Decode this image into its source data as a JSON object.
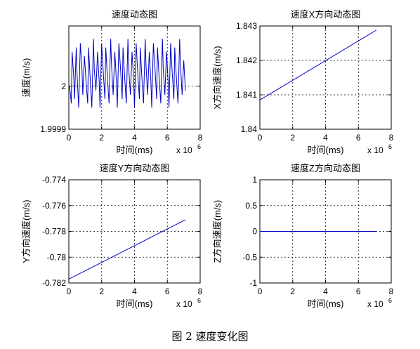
{
  "caption": "图 2 速度变化图",
  "chart_data": [
    {
      "id": "speed",
      "type": "line",
      "title": "速度动态图",
      "xlabel": "时间(ms)",
      "ylabel": "速度(m/s)",
      "x_exponent_label": "x 10",
      "x_exponent": "6",
      "xlim": [
        0,
        8
      ],
      "ylim": [
        1.9999,
        2.00014
      ],
      "xticks": [
        0,
        2,
        4,
        6,
        8
      ],
      "xtick_labels": [
        "0",
        "2",
        "4",
        "6",
        "8"
      ],
      "yticks": [
        1.9999,
        2
      ],
      "ytick_labels": [
        "1.9999",
        "2"
      ],
      "grid": true,
      "line_color": "#0000c8",
      "series": [
        {
          "x": [
            0.05,
            0.15,
            0.2,
            0.3,
            0.35,
            0.45,
            0.5,
            0.6,
            0.7,
            0.8,
            0.85,
            0.95,
            1.05,
            1.15,
            1.2,
            1.3,
            1.4,
            1.5,
            1.55,
            1.65,
            1.75,
            1.85,
            1.9,
            2.0,
            2.1,
            2.2,
            2.25,
            2.35,
            2.45,
            2.55,
            2.6,
            2.7,
            2.8,
            2.9,
            2.95,
            3.05,
            3.15,
            3.25,
            3.3,
            3.4,
            3.5,
            3.6,
            3.65,
            3.75,
            3.85,
            3.95,
            4.0,
            4.1,
            4.2,
            4.3,
            4.35,
            4.45,
            4.55,
            4.65,
            4.7,
            4.8,
            4.9,
            5.0,
            5.05,
            5.15,
            5.25,
            5.35,
            5.4,
            5.5,
            5.6,
            5.7,
            5.75,
            5.85,
            5.95,
            6.05,
            6.1,
            6.2,
            6.3,
            6.4,
            6.45,
            6.55,
            6.65,
            6.75,
            6.8,
            6.9,
            7.0,
            7.1
          ],
          "y": [
            2.0,
            1.99996,
            2.00008,
            2.00002,
            1.99997,
            2.00009,
            2.00003,
            1.99995,
            2.0001,
            2.00004,
            1.99998,
            2.00007,
            2.00001,
            1.99996,
            2.00009,
            2.00002,
            1.99995,
            2.00011,
            2.00004,
            1.99999,
            2.00008,
            2.00001,
            1.99995,
            2.0001,
            2.00003,
            1.99997,
            2.00009,
            2.00002,
            1.99996,
            2.00011,
            2.00005,
            1.99998,
            2.00008,
            2.00001,
            1.99995,
            2.0001,
            2.00004,
            1.99997,
            2.00009,
            2.00002,
            1.99996,
            2.00011,
            2.00004,
            1.99998,
            2.00008,
            2.00001,
            1.99995,
            2.0001,
            2.00003,
            1.99997,
            2.00009,
            2.00002,
            1.99996,
            2.00011,
            2.00005,
            1.99998,
            2.00008,
            2.00001,
            1.99995,
            2.0001,
            2.00004,
            1.99997,
            2.00009,
            2.00002,
            1.99996,
            2.00011,
            2.00004,
            1.99998,
            2.00008,
            2.00001,
            1.99995,
            2.0001,
            2.00003,
            1.99997,
            2.00009,
            2.00002,
            1.99996,
            2.00011,
            2.00005,
            1.99998,
            2.00006,
            1.99999
          ]
        }
      ]
    },
    {
      "id": "speed-x",
      "type": "line",
      "title": "速度X方向动态图",
      "xlabel": "时间(ms)",
      "ylabel": "X方向速度(m/s)",
      "x_exponent_label": "x 10",
      "x_exponent": "6",
      "xlim": [
        0,
        8
      ],
      "ylim": [
        1.84,
        1.843
      ],
      "xticks": [
        0,
        2,
        4,
        6,
        8
      ],
      "xtick_labels": [
        "0",
        "2",
        "4",
        "6",
        "8"
      ],
      "yticks": [
        1.84,
        1.841,
        1.842,
        1.843
      ],
      "ytick_labels": [
        "1.84",
        "1.841",
        "1.842",
        "1.843"
      ],
      "grid": true,
      "line_color": "#0000c8",
      "series": [
        {
          "x": [
            0,
            7.1
          ],
          "y": [
            1.84085,
            1.84288
          ]
        }
      ]
    },
    {
      "id": "speed-y",
      "type": "line",
      "title": "速度Y方向动态图",
      "xlabel": "时间(ms)",
      "ylabel": "Y方向速度(m/s)",
      "x_exponent_label": "x 10",
      "x_exponent": "6",
      "xlim": [
        0,
        8
      ],
      "ylim": [
        -0.782,
        -0.774
      ],
      "xticks": [
        0,
        2,
        4,
        6,
        8
      ],
      "xtick_labels": [
        "0",
        "2",
        "4",
        "6",
        "8"
      ],
      "yticks": [
        -0.782,
        -0.78,
        -0.778,
        -0.776,
        -0.774
      ],
      "ytick_labels": [
        "-0.782",
        "-0.78",
        "-0.778",
        "-0.776",
        "-0.774"
      ],
      "grid": true,
      "line_color": "#0000c8",
      "series": [
        {
          "x": [
            0,
            7.1
          ],
          "y": [
            -0.7817,
            -0.7771
          ]
        }
      ]
    },
    {
      "id": "speed-z",
      "type": "line",
      "title": "速度Z方向动态图",
      "xlabel": "时间(ms)",
      "ylabel": "Z方向速度(m/s)",
      "x_exponent_label": "x 10",
      "x_exponent": "6",
      "xlim": [
        0,
        8
      ],
      "ylim": [
        -1,
        1
      ],
      "xticks": [
        0,
        2,
        4,
        6,
        8
      ],
      "xtick_labels": [
        "0",
        "2",
        "4",
        "6",
        "8"
      ],
      "yticks": [
        -1,
        -0.5,
        0,
        0.5,
        1
      ],
      "ytick_labels": [
        "-1",
        "-0.5",
        "0",
        "0.5",
        "1"
      ],
      "grid": true,
      "line_color": "#0000c8",
      "series": [
        {
          "x": [
            0,
            7.1
          ],
          "y": [
            0,
            0
          ]
        }
      ]
    }
  ]
}
